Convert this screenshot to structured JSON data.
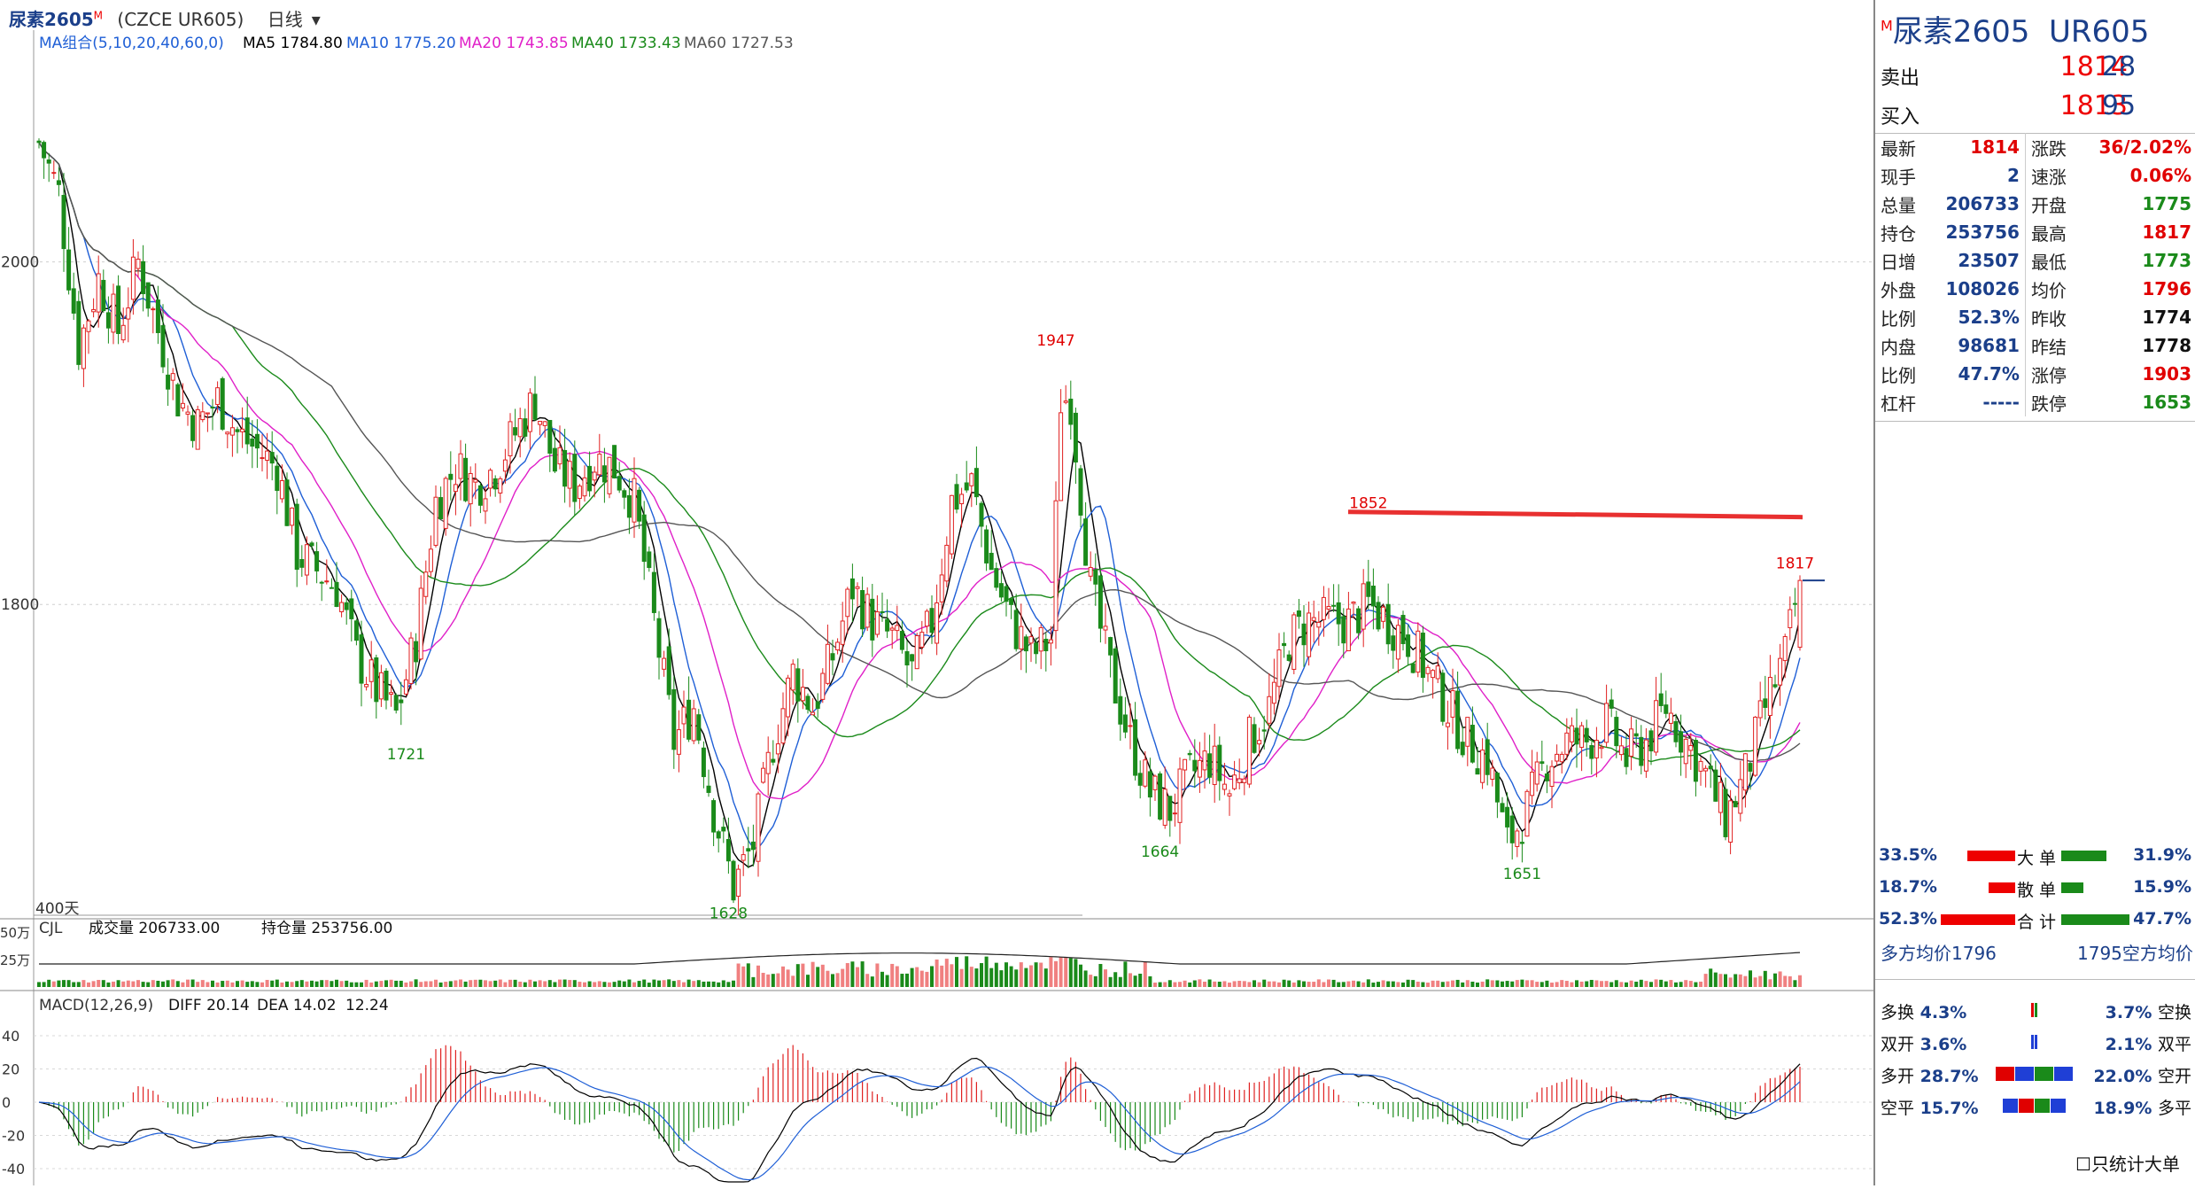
{
  "window": {
    "title": "尿素2605",
    "title_badge": "M",
    "contract": "(CZCE UR605)",
    "period": "日线"
  },
  "chart_data": [
    {
      "type": "candlestick",
      "panel": "price",
      "title": "",
      "ma_legend": {
        "label": "MA组合(5,10,20,40,60,0)",
        "items": [
          {
            "name": "MA5",
            "value": "1784.80",
            "color": "#000000"
          },
          {
            "name": "MA10",
            "value": "1775.20",
            "color": "#1f5fd6"
          },
          {
            "name": "MA20",
            "value": "1743.85",
            "color": "#e020c8"
          },
          {
            "name": "MA40",
            "value": "1733.43",
            "color": "#1a8a1a"
          },
          {
            "name": "MA60",
            "value": "1727.53",
            "color": "#555555"
          }
        ]
      },
      "y_ticks": [
        "2000",
        "1800"
      ],
      "ylim": [
        1618,
        2125
      ],
      "x_range_label": "400天",
      "annotations": [
        {
          "text": "1721",
          "x": 74,
          "y": 1721,
          "color": "#1a8a1a",
          "pos": "below"
        },
        {
          "text": "1628",
          "x": 139,
          "y": 1628,
          "color": "#1a8a1a",
          "pos": "below"
        },
        {
          "text": "1947",
          "x": 205,
          "y": 1947,
          "color": "#e00000",
          "pos": "above"
        },
        {
          "text": "1664",
          "x": 226,
          "y": 1664,
          "color": "#1a8a1a",
          "pos": "below"
        },
        {
          "text": "1852",
          "x": 268,
          "y": 1852,
          "color": "#e00000",
          "pos": "above"
        },
        {
          "text": "1651",
          "x": 299,
          "y": 1651,
          "color": "#1a8a1a",
          "pos": "below"
        },
        {
          "text": "1817",
          "x": 354,
          "y": 1817,
          "color": "#e00000",
          "pos": "above"
        }
      ],
      "resistance_line": {
        "value": 1852,
        "color": "#e83030"
      },
      "last_price_marker": 1814,
      "ohlc_anchors": [
        [
          0,
          2070
        ],
        [
          4,
          2040
        ],
        [
          8,
          1950
        ],
        [
          12,
          1990
        ],
        [
          16,
          1960
        ],
        [
          20,
          2000
        ],
        [
          24,
          1960
        ],
        [
          28,
          1920
        ],
        [
          32,
          1905
        ],
        [
          36,
          1920
        ],
        [
          40,
          1900
        ],
        [
          44,
          1890
        ],
        [
          48,
          1880
        ],
        [
          52,
          1830
        ],
        [
          56,
          1820
        ],
        [
          60,
          1810
        ],
        [
          64,
          1770
        ],
        [
          68,
          1750
        ],
        [
          72,
          1735
        ],
        [
          76,
          1780
        ],
        [
          80,
          1860
        ],
        [
          84,
          1880
        ],
        [
          88,
          1870
        ],
        [
          92,
          1880
        ],
        [
          96,
          1900
        ],
        [
          100,
          1920
        ],
        [
          104,
          1880
        ],
        [
          108,
          1870
        ],
        [
          112,
          1885
        ],
        [
          116,
          1880
        ],
        [
          120,
          1860
        ],
        [
          124,
          1790
        ],
        [
          128,
          1720
        ],
        [
          132,
          1740
        ],
        [
          136,
          1680
        ],
        [
          140,
          1635
        ],
        [
          144,
          1660
        ],
        [
          148,
          1720
        ],
        [
          152,
          1760
        ],
        [
          156,
          1740
        ],
        [
          160,
          1770
        ],
        [
          164,
          1810
        ],
        [
          168,
          1790
        ],
        [
          172,
          1780
        ],
        [
          176,
          1760
        ],
        [
          180,
          1790
        ],
        [
          184,
          1860
        ],
        [
          188,
          1870
        ],
        [
          192,
          1820
        ],
        [
          196,
          1790
        ],
        [
          200,
          1770
        ],
        [
          204,
          1780
        ],
        [
          206,
          1920
        ],
        [
          208,
          1920
        ],
        [
          212,
          1810
        ],
        [
          216,
          1760
        ],
        [
          220,
          1720
        ],
        [
          224,
          1690
        ],
        [
          228,
          1680
        ],
        [
          232,
          1700
        ],
        [
          236,
          1710
        ],
        [
          240,
          1690
        ],
        [
          244,
          1720
        ],
        [
          248,
          1740
        ],
        [
          252,
          1780
        ],
        [
          256,
          1790
        ],
        [
          260,
          1790
        ],
        [
          264,
          1790
        ],
        [
          268,
          1800
        ],
        [
          272,
          1790
        ],
        [
          276,
          1780
        ],
        [
          280,
          1760
        ],
        [
          284,
          1740
        ],
        [
          288,
          1720
        ],
        [
          292,
          1710
        ],
        [
          296,
          1660
        ],
        [
          300,
          1680
        ],
        [
          304,
          1710
        ],
        [
          308,
          1720
        ],
        [
          312,
          1720
        ],
        [
          316,
          1730
        ],
        [
          320,
          1710
        ],
        [
          324,
          1720
        ],
        [
          328,
          1740
        ],
        [
          332,
          1720
        ],
        [
          336,
          1700
        ],
        [
          340,
          1675
        ],
        [
          344,
          1700
        ],
        [
          348,
          1740
        ],
        [
          352,
          1770
        ],
        [
          355,
          1814
        ]
      ]
    },
    {
      "type": "bar",
      "panel": "volume",
      "title": "CJL",
      "legend": [
        {
          "label": "成交量",
          "value": "206733.00"
        },
        {
          "label": "持仓量",
          "value": "253756.00"
        }
      ],
      "y_ticks": [
        "50万",
        "25万"
      ],
      "ylim": [
        0,
        550000
      ]
    },
    {
      "type": "bar",
      "panel": "macd",
      "title": "MACD(12,26,9)",
      "legend": [
        {
          "label": "DIFF",
          "value": "20.14",
          "color": "#000000"
        },
        {
          "label": "DEA",
          "value": "14.02",
          "color": "#1f5fd6"
        },
        {
          "label": "",
          "value": "12.24",
          "color": "#e00000"
        }
      ],
      "y_ticks": [
        "40",
        "20",
        "0",
        "-20",
        "-40"
      ],
      "ylim": [
        -48,
        48
      ]
    }
  ],
  "quote": {
    "name": "尿素2605",
    "code": "UR605",
    "badge": "M",
    "sell": {
      "label": "卖出",
      "price": "1814",
      "volume": "28"
    },
    "buy": {
      "label": "买入",
      "price": "1813",
      "volume": "95"
    },
    "rows": [
      {
        "l1": "最新",
        "v1": "1814",
        "c1": "#e00000",
        "l2": "涨跌",
        "v2": "36/2.02%",
        "c2": "#e00000"
      },
      {
        "l1": "现手",
        "v1": "2",
        "c1": "#1b3f8a",
        "l2": "速涨",
        "v2": "0.06%",
        "c2": "#e00000"
      },
      {
        "l1": "总量",
        "v1": "206733",
        "c1": "#1b3f8a",
        "l2": "开盘",
        "v2": "1775",
        "c2": "#1a8a1a"
      },
      {
        "l1": "持仓",
        "v1": "253756",
        "c1": "#1b3f8a",
        "l2": "最高",
        "v2": "1817",
        "c2": "#e00000"
      },
      {
        "l1": "日增",
        "v1": "23507",
        "c1": "#1b3f8a",
        "l2": "最低",
        "v2": "1773",
        "c2": "#1a8a1a"
      },
      {
        "l1": "外盘",
        "v1": "108026",
        "c1": "#1b3f8a",
        "l2": "均价",
        "v2": "1796",
        "c2": "#e00000"
      },
      {
        "l1": "比例",
        "v1": "52.3%",
        "c1": "#1b3f8a",
        "l2": "昨收",
        "v2": "1774",
        "c2": "#111111"
      },
      {
        "l1": "内盘",
        "v1": "98681",
        "c1": "#1b3f8a",
        "l2": "昨结",
        "v2": "1778",
        "c2": "#111111"
      },
      {
        "l1": "比例",
        "v1": "47.7%",
        "c1": "#1b3f8a",
        "l2": "涨停",
        "v2": "1903",
        "c2": "#e00000"
      },
      {
        "l1": "杠杆",
        "v1": "-----",
        "c1": "#1b3f8a",
        "l2": "跌停",
        "v2": "1653",
        "c2": "#1a8a1a"
      }
    ]
  },
  "order_flow": [
    {
      "left": "33.5%",
      "label": "大 单",
      "right": "31.9%",
      "lw": 90,
      "rw": 85
    },
    {
      "left": "18.7%",
      "label": "散 单",
      "right": "15.9%",
      "lw": 50,
      "rw": 42
    },
    {
      "left": "52.3%",
      "label": "合 计",
      "right": "47.7%",
      "lw": 140,
      "rw": 128
    }
  ],
  "avg_price": {
    "long_label": "多方均价",
    "long_value": "1796",
    "short_value": "1795",
    "short_label": "空方均价"
  },
  "position_changes": [
    {
      "l_label": "多换",
      "l_value": "4.3%",
      "r_value": "3.7%",
      "r_label": "空换",
      "colors": [
        "#e00000",
        "#1a8a1a"
      ],
      "width": 8
    },
    {
      "l_label": "双开",
      "l_value": "3.6%",
      "r_value": "2.1%",
      "r_label": "双平",
      "colors": [
        "#1f3fd6",
        "#1f3fd6"
      ],
      "width": 8
    },
    {
      "l_label": "多开",
      "l_value": "28.7%",
      "r_value": "22.0%",
      "r_label": "空开",
      "colors": [
        "#e00000",
        "#1f3fd6",
        "#1a8a1a",
        "#1f3fd6"
      ],
      "width": 88
    },
    {
      "l_label": "空平",
      "l_value": "15.7%",
      "r_value": "18.9%",
      "r_label": "多平",
      "colors": [
        "#1f3fd6",
        "#e00000",
        "#1a8a1a",
        "#1f3fd6"
      ],
      "width": 72
    }
  ],
  "only_big_orders": "只统计大单"
}
